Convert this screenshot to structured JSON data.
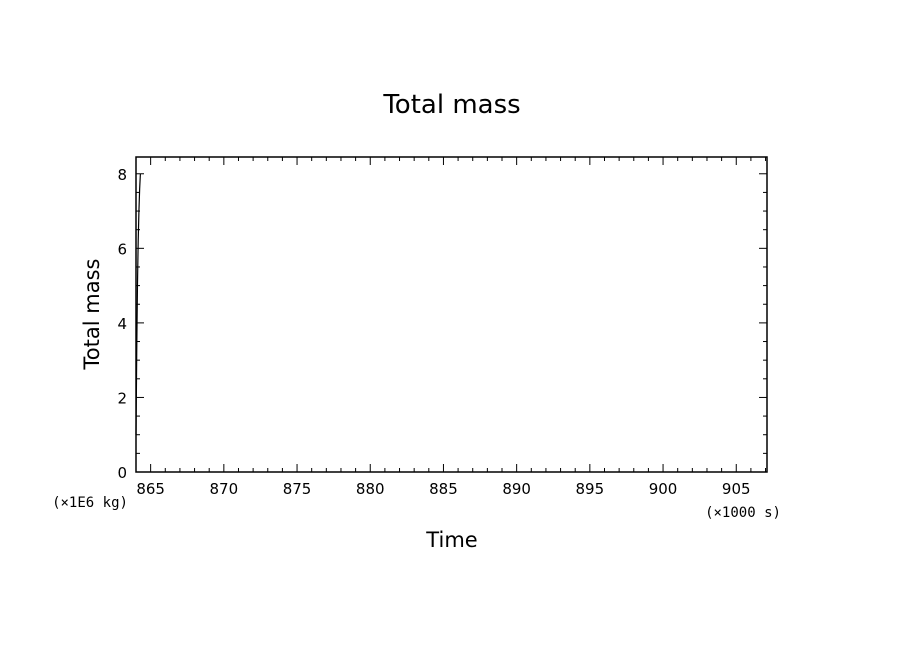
{
  "chart_data": {
    "type": "line",
    "title": "Total mass",
    "xlabel": "Time",
    "ylabel": "Total mass",
    "x_unit": "(×1000 s)",
    "y_unit": "(×1E6 kg)",
    "xlim": [
      864.0,
      907.1
    ],
    "ylim": [
      0,
      8.45
    ],
    "x_ticks": [
      865,
      870,
      875,
      880,
      885,
      890,
      895,
      900,
      905
    ],
    "y_ticks": [
      0,
      2,
      4,
      6,
      8
    ],
    "x_tick_labels": [
      "865",
      "870",
      "875",
      "880",
      "885",
      "890",
      "895",
      "900",
      "905"
    ],
    "y_tick_labels": [
      "0",
      "2",
      "4",
      "6",
      "8"
    ],
    "grid": false,
    "series": [
      {
        "x": [
          864.0,
          864.05,
          864.1,
          864.15,
          864.2,
          864.25,
          864.3
        ],
        "y": [
          1.0,
          3.2,
          5.0,
          6.2,
          7.0,
          7.6,
          8.0
        ]
      }
    ],
    "colors": {
      "line": "#000000",
      "axes": "#000000",
      "background": "#ffffff"
    }
  }
}
